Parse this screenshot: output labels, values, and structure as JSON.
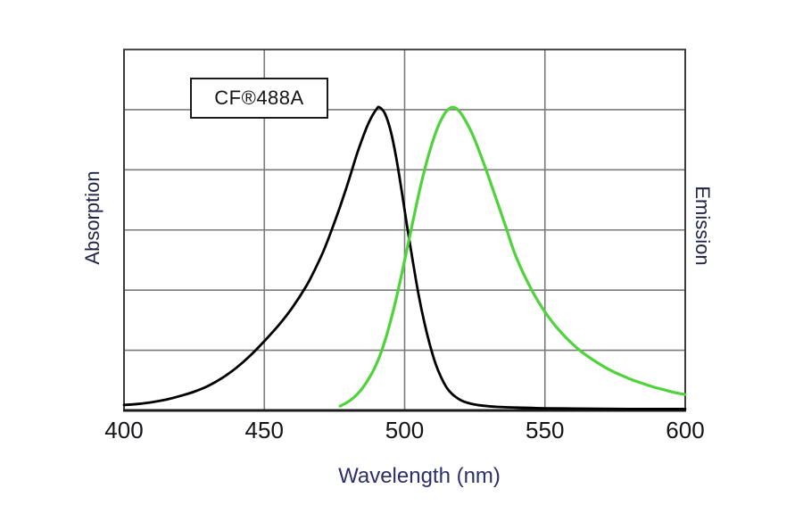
{
  "title_box": {
    "label": "CF®488A"
  },
  "colors": {
    "absorption_curve": "#000000",
    "emission_curve": "#4fd33b",
    "grid_line": "#7a7a7a",
    "plot_border": "#3c3c3c",
    "bottom_axis": "#1a1a1a",
    "tick_text": "#131318",
    "x_title_text": "#2b3069",
    "side_title_text": "#202547",
    "background": "#ffffff"
  },
  "chart_data": {
    "type": "line",
    "title": "CF®488A",
    "xlabel": "Wavelength (nm)",
    "ylabel_left": "Absorption",
    "ylabel_right": "Emission",
    "xlim": [
      400,
      600
    ],
    "ylim": [
      0,
      1
    ],
    "x_ticks": [
      400,
      450,
      500,
      550,
      600
    ],
    "y_divisions": 6,
    "grid": true,
    "legend": "none",
    "series": [
      {
        "name": "Absorption",
        "color": "#000000",
        "points": [
          [
            400,
            0.015
          ],
          [
            405,
            0.018
          ],
          [
            410,
            0.023
          ],
          [
            415,
            0.03
          ],
          [
            420,
            0.04
          ],
          [
            425,
            0.052
          ],
          [
            430,
            0.068
          ],
          [
            435,
            0.09
          ],
          [
            440,
            0.118
          ],
          [
            445,
            0.152
          ],
          [
            450,
            0.192
          ],
          [
            455,
            0.235
          ],
          [
            460,
            0.285
          ],
          [
            465,
            0.345
          ],
          [
            468,
            0.39
          ],
          [
            471,
            0.44
          ],
          [
            474,
            0.5
          ],
          [
            477,
            0.565
          ],
          [
            480,
            0.635
          ],
          [
            483,
            0.71
          ],
          [
            486,
            0.775
          ],
          [
            488,
            0.81
          ],
          [
            490,
            0.835
          ],
          [
            491,
            0.84
          ],
          [
            493,
            0.822
          ],
          [
            495,
            0.775
          ],
          [
            497,
            0.7
          ],
          [
            499,
            0.605
          ],
          [
            501,
            0.505
          ],
          [
            503,
            0.41
          ],
          [
            505,
            0.32
          ],
          [
            507,
            0.245
          ],
          [
            509,
            0.182
          ],
          [
            511,
            0.13
          ],
          [
            513,
            0.092
          ],
          [
            515,
            0.063
          ],
          [
            517,
            0.045
          ],
          [
            519,
            0.033
          ],
          [
            521,
            0.025
          ],
          [
            524,
            0.018
          ],
          [
            528,
            0.013
          ],
          [
            533,
            0.01
          ],
          [
            540,
            0.008
          ],
          [
            550,
            0.006
          ],
          [
            565,
            0.005
          ],
          [
            580,
            0.004
          ],
          [
            600,
            0.004
          ]
        ]
      },
      {
        "name": "Emission",
        "color": "#4fd33b",
        "points": [
          [
            477,
            0.012
          ],
          [
            479,
            0.02
          ],
          [
            481,
            0.03
          ],
          [
            483,
            0.044
          ],
          [
            485,
            0.062
          ],
          [
            487,
            0.085
          ],
          [
            489,
            0.113
          ],
          [
            491,
            0.148
          ],
          [
            493,
            0.193
          ],
          [
            495,
            0.248
          ],
          [
            497,
            0.31
          ],
          [
            499,
            0.38
          ],
          [
            501,
            0.452
          ],
          [
            503,
            0.525
          ],
          [
            505,
            0.598
          ],
          [
            507,
            0.663
          ],
          [
            509,
            0.72
          ],
          [
            511,
            0.768
          ],
          [
            513,
            0.805
          ],
          [
            515,
            0.83
          ],
          [
            517,
            0.84
          ],
          [
            519,
            0.833
          ],
          [
            521,
            0.812
          ],
          [
            524,
            0.768
          ],
          [
            527,
            0.71
          ],
          [
            530,
            0.645
          ],
          [
            533,
            0.578
          ],
          [
            536,
            0.51
          ],
          [
            539,
            0.44
          ],
          [
            542,
            0.385
          ],
          [
            545,
            0.338
          ],
          [
            548,
            0.297
          ],
          [
            551,
            0.262
          ],
          [
            554,
            0.232
          ],
          [
            557,
            0.206
          ],
          [
            560,
            0.183
          ],
          [
            563,
            0.163
          ],
          [
            566,
            0.146
          ],
          [
            569,
            0.131
          ],
          [
            572,
            0.117
          ],
          [
            575,
            0.105
          ],
          [
            578,
            0.095
          ],
          [
            581,
            0.085
          ],
          [
            584,
            0.077
          ],
          [
            587,
            0.069
          ],
          [
            590,
            0.062
          ],
          [
            593,
            0.056
          ],
          [
            596,
            0.05
          ],
          [
            600,
            0.044
          ]
        ]
      }
    ]
  }
}
